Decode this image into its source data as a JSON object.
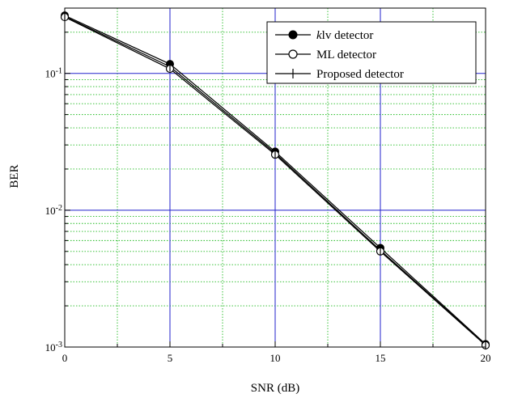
{
  "chart_data": {
    "type": "line",
    "title": "",
    "xlabel": "SNR (dB)",
    "ylabel": "BER",
    "xlim": [
      0,
      20
    ],
    "ylim": [
      0.001,
      0.3
    ],
    "yscale": "log",
    "x_ticks": [
      "0",
      "5",
      "10",
      "15",
      "20"
    ],
    "y_ticks": [
      {
        "base": "10",
        "exp": "-3",
        "value": 0.001
      },
      {
        "base": "10",
        "exp": "-2",
        "value": 0.01
      },
      {
        "base": "10",
        "exp": "-1",
        "value": 0.1
      }
    ],
    "grid": true,
    "legend_position": "top-right",
    "colors": {
      "major_grid": "#2222cc",
      "minor_grid": "#22bb22",
      "series": "#000000",
      "frame": "#000000"
    },
    "series": [
      {
        "name_prefix": "k",
        "name_suffix": "lv detector",
        "marker": "filled-circle",
        "x": [
          0,
          5,
          10,
          15,
          20
        ],
        "y": [
          0.265,
          0.117,
          0.0268,
          0.0053,
          0.00105
        ]
      },
      {
        "name": "ML detector",
        "marker": "open-circle",
        "x": [
          0,
          5,
          10,
          15,
          20
        ],
        "y": [
          0.258,
          0.108,
          0.0255,
          0.005,
          0.00103
        ]
      },
      {
        "name": "Proposed detector",
        "marker": "plus",
        "x": [
          0,
          5,
          10,
          15,
          20
        ],
        "y": [
          0.261,
          0.112,
          0.0261,
          0.0051,
          0.00104
        ]
      }
    ]
  }
}
